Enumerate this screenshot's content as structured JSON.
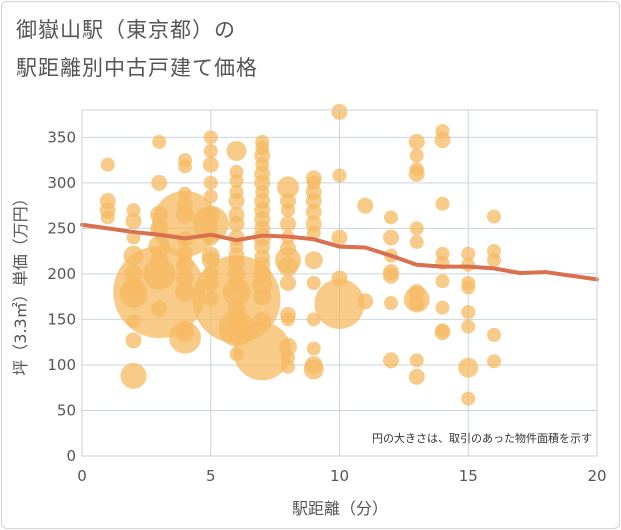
{
  "title_line1": "御嶽山駅（東京都）の",
  "title_line2": "駅距離別中古戸建て価格",
  "chart_data": {
    "type": "scatter",
    "title": "御嶽山駅（東京都）の 駅距離別中古戸建て価格",
    "xlabel": "駅距離（分）",
    "ylabel": "坪（3.3㎡）単価（万円）",
    "xlim": [
      0,
      20
    ],
    "ylim": [
      0,
      380
    ],
    "xticks": [
      0,
      5,
      10,
      15,
      20
    ],
    "yticks": [
      0,
      50,
      100,
      150,
      200,
      250,
      300,
      350
    ],
    "grid": true,
    "annotation": "円の大きさは、取引のあった物件面積を示す",
    "bubble_color": "#f5b961",
    "line_color": "#d9704e",
    "bubbles": [
      {
        "x": 1,
        "y": 320,
        "s": 7
      },
      {
        "x": 1,
        "y": 280,
        "s": 8
      },
      {
        "x": 1,
        "y": 270,
        "s": 8
      },
      {
        "x": 1,
        "y": 262,
        "s": 7
      },
      {
        "x": 2,
        "y": 270,
        "s": 7
      },
      {
        "x": 2,
        "y": 258,
        "s": 8
      },
      {
        "x": 2,
        "y": 240,
        "s": 7
      },
      {
        "x": 2,
        "y": 220,
        "s": 10
      },
      {
        "x": 2,
        "y": 200,
        "s": 9
      },
      {
        "x": 2,
        "y": 183,
        "s": 12
      },
      {
        "x": 2,
        "y": 178,
        "s": 14
      },
      {
        "x": 2,
        "y": 148,
        "s": 7
      },
      {
        "x": 2,
        "y": 127,
        "s": 8
      },
      {
        "x": 2,
        "y": 88,
        "s": 13
      },
      {
        "x": 3,
        "y": 345,
        "s": 7
      },
      {
        "x": 3,
        "y": 300,
        "s": 8
      },
      {
        "x": 3,
        "y": 265,
        "s": 9
      },
      {
        "x": 3,
        "y": 250,
        "s": 9
      },
      {
        "x": 3,
        "y": 230,
        "s": 11
      },
      {
        "x": 3,
        "y": 215,
        "s": 9
      },
      {
        "x": 3,
        "y": 200,
        "s": 16
      },
      {
        "x": 3,
        "y": 180,
        "s": 46
      },
      {
        "x": 3,
        "y": 162,
        "s": 8
      },
      {
        "x": 4,
        "y": 325,
        "s": 7
      },
      {
        "x": 4,
        "y": 318,
        "s": 7
      },
      {
        "x": 4,
        "y": 288,
        "s": 7
      },
      {
        "x": 4,
        "y": 275,
        "s": 8
      },
      {
        "x": 4,
        "y": 265,
        "s": 9
      },
      {
        "x": 4,
        "y": 255,
        "s": 33
      },
      {
        "x": 4,
        "y": 238,
        "s": 8
      },
      {
        "x": 4,
        "y": 222,
        "s": 8
      },
      {
        "x": 4,
        "y": 210,
        "s": 9
      },
      {
        "x": 4,
        "y": 195,
        "s": 9
      },
      {
        "x": 4,
        "y": 180,
        "s": 10
      },
      {
        "x": 4,
        "y": 140,
        "s": 8
      },
      {
        "x": 4,
        "y": 135,
        "s": 9
      },
      {
        "x": 4,
        "y": 130,
        "s": 16
      },
      {
        "x": 5,
        "y": 350,
        "s": 7
      },
      {
        "x": 5,
        "y": 335,
        "s": 7
      },
      {
        "x": 5,
        "y": 320,
        "s": 8
      },
      {
        "x": 5,
        "y": 300,
        "s": 7
      },
      {
        "x": 5,
        "y": 285,
        "s": 7
      },
      {
        "x": 5,
        "y": 265,
        "s": 9
      },
      {
        "x": 5,
        "y": 255,
        "s": 18
      },
      {
        "x": 5,
        "y": 240,
        "s": 8
      },
      {
        "x": 5,
        "y": 220,
        "s": 9
      },
      {
        "x": 5,
        "y": 215,
        "s": 9
      },
      {
        "x": 5,
        "y": 200,
        "s": 8
      },
      {
        "x": 5,
        "y": 190,
        "s": 8
      },
      {
        "x": 5,
        "y": 173,
        "s": 8
      },
      {
        "x": 6,
        "y": 335,
        "s": 10
      },
      {
        "x": 6,
        "y": 312,
        "s": 7
      },
      {
        "x": 6,
        "y": 302,
        "s": 7
      },
      {
        "x": 6,
        "y": 290,
        "s": 7
      },
      {
        "x": 6,
        "y": 280,
        "s": 8
      },
      {
        "x": 6,
        "y": 265,
        "s": 8
      },
      {
        "x": 6,
        "y": 255,
        "s": 8
      },
      {
        "x": 6,
        "y": 240,
        "s": 8
      },
      {
        "x": 6,
        "y": 230,
        "s": 7
      },
      {
        "x": 6,
        "y": 220,
        "s": 8
      },
      {
        "x": 6,
        "y": 212,
        "s": 8
      },
      {
        "x": 6,
        "y": 200,
        "s": 9
      },
      {
        "x": 6,
        "y": 190,
        "s": 8
      },
      {
        "x": 6,
        "y": 180,
        "s": 14
      },
      {
        "x": 6,
        "y": 172,
        "s": 44
      },
      {
        "x": 6,
        "y": 160,
        "s": 9
      },
      {
        "x": 6,
        "y": 150,
        "s": 9
      },
      {
        "x": 6,
        "y": 140,
        "s": 18
      },
      {
        "x": 6,
        "y": 135,
        "s": 10
      },
      {
        "x": 6,
        "y": 112,
        "s": 7
      },
      {
        "x": 7,
        "y": 345,
        "s": 7
      },
      {
        "x": 7,
        "y": 338,
        "s": 7
      },
      {
        "x": 7,
        "y": 330,
        "s": 8
      },
      {
        "x": 7,
        "y": 320,
        "s": 7
      },
      {
        "x": 7,
        "y": 310,
        "s": 8
      },
      {
        "x": 7,
        "y": 300,
        "s": 8
      },
      {
        "x": 7,
        "y": 290,
        "s": 7
      },
      {
        "x": 7,
        "y": 280,
        "s": 8
      },
      {
        "x": 7,
        "y": 270,
        "s": 8
      },
      {
        "x": 7,
        "y": 260,
        "s": 8
      },
      {
        "x": 7,
        "y": 250,
        "s": 8
      },
      {
        "x": 7,
        "y": 240,
        "s": 9
      },
      {
        "x": 7,
        "y": 230,
        "s": 8
      },
      {
        "x": 7,
        "y": 218,
        "s": 8
      },
      {
        "x": 7,
        "y": 210,
        "s": 8
      },
      {
        "x": 7,
        "y": 200,
        "s": 9
      },
      {
        "x": 7,
        "y": 188,
        "s": 10
      },
      {
        "x": 7,
        "y": 175,
        "s": 9
      },
      {
        "x": 7,
        "y": 148,
        "s": 9
      },
      {
        "x": 7,
        "y": 115,
        "s": 29
      },
      {
        "x": 8,
        "y": 295,
        "s": 11
      },
      {
        "x": 8,
        "y": 280,
        "s": 8
      },
      {
        "x": 8,
        "y": 270,
        "s": 7
      },
      {
        "x": 8,
        "y": 255,
        "s": 8
      },
      {
        "x": 8,
        "y": 240,
        "s": 7
      },
      {
        "x": 8,
        "y": 228,
        "s": 8
      },
      {
        "x": 8,
        "y": 215,
        "s": 13
      },
      {
        "x": 8,
        "y": 208,
        "s": 10
      },
      {
        "x": 8,
        "y": 190,
        "s": 8
      },
      {
        "x": 8,
        "y": 155,
        "s": 8
      },
      {
        "x": 8,
        "y": 150,
        "s": 7
      },
      {
        "x": 8,
        "y": 120,
        "s": 9
      },
      {
        "x": 8,
        "y": 108,
        "s": 7
      },
      {
        "x": 8,
        "y": 98,
        "s": 7
      },
      {
        "x": 9,
        "y": 305,
        "s": 8
      },
      {
        "x": 9,
        "y": 300,
        "s": 7
      },
      {
        "x": 9,
        "y": 290,
        "s": 8
      },
      {
        "x": 9,
        "y": 280,
        "s": 8
      },
      {
        "x": 9,
        "y": 268,
        "s": 8
      },
      {
        "x": 9,
        "y": 255,
        "s": 8
      },
      {
        "x": 9,
        "y": 245,
        "s": 7
      },
      {
        "x": 9,
        "y": 215,
        "s": 9
      },
      {
        "x": 9,
        "y": 190,
        "s": 7
      },
      {
        "x": 9,
        "y": 150,
        "s": 7
      },
      {
        "x": 9,
        "y": 118,
        "s": 7
      },
      {
        "x": 9,
        "y": 100,
        "s": 9
      },
      {
        "x": 9,
        "y": 95,
        "s": 10
      },
      {
        "x": 10,
        "y": 378,
        "s": 8
      },
      {
        "x": 10,
        "y": 308,
        "s": 7
      },
      {
        "x": 10,
        "y": 240,
        "s": 8
      },
      {
        "x": 10,
        "y": 195,
        "s": 8
      },
      {
        "x": 10,
        "y": 167,
        "s": 25
      },
      {
        "x": 11,
        "y": 275,
        "s": 8
      },
      {
        "x": 11,
        "y": 170,
        "s": 8
      },
      {
        "x": 12,
        "y": 262,
        "s": 7
      },
      {
        "x": 12,
        "y": 240,
        "s": 8
      },
      {
        "x": 12,
        "y": 220,
        "s": 7
      },
      {
        "x": 12,
        "y": 202,
        "s": 8
      },
      {
        "x": 12,
        "y": 198,
        "s": 8
      },
      {
        "x": 12,
        "y": 168,
        "s": 7
      },
      {
        "x": 12,
        "y": 105,
        "s": 8
      },
      {
        "x": 13,
        "y": 345,
        "s": 8
      },
      {
        "x": 13,
        "y": 330,
        "s": 7
      },
      {
        "x": 13,
        "y": 315,
        "s": 7
      },
      {
        "x": 13,
        "y": 310,
        "s": 8
      },
      {
        "x": 13,
        "y": 250,
        "s": 7
      },
      {
        "x": 13,
        "y": 235,
        "s": 7
      },
      {
        "x": 13,
        "y": 180,
        "s": 8
      },
      {
        "x": 13,
        "y": 172,
        "s": 13
      },
      {
        "x": 13,
        "y": 168,
        "s": 8
      },
      {
        "x": 13,
        "y": 105,
        "s": 7
      },
      {
        "x": 13,
        "y": 87,
        "s": 8
      },
      {
        "x": 14,
        "y": 357,
        "s": 7
      },
      {
        "x": 14,
        "y": 347,
        "s": 8
      },
      {
        "x": 14,
        "y": 277,
        "s": 7
      },
      {
        "x": 14,
        "y": 222,
        "s": 7
      },
      {
        "x": 14,
        "y": 212,
        "s": 7
      },
      {
        "x": 14,
        "y": 192,
        "s": 7
      },
      {
        "x": 14,
        "y": 163,
        "s": 7
      },
      {
        "x": 14,
        "y": 138,
        "s": 7
      },
      {
        "x": 14,
        "y": 136,
        "s": 8
      },
      {
        "x": 15,
        "y": 222,
        "s": 7
      },
      {
        "x": 15,
        "y": 210,
        "s": 7
      },
      {
        "x": 15,
        "y": 190,
        "s": 7
      },
      {
        "x": 15,
        "y": 185,
        "s": 7
      },
      {
        "x": 15,
        "y": 158,
        "s": 7
      },
      {
        "x": 15,
        "y": 142,
        "s": 7
      },
      {
        "x": 15,
        "y": 97,
        "s": 10
      },
      {
        "x": 15,
        "y": 63,
        "s": 7
      },
      {
        "x": 16,
        "y": 263,
        "s": 7
      },
      {
        "x": 16,
        "y": 225,
        "s": 7
      },
      {
        "x": 16,
        "y": 215,
        "s": 7
      },
      {
        "x": 16,
        "y": 133,
        "s": 7
      },
      {
        "x": 16,
        "y": 104,
        "s": 7
      }
    ],
    "trend_line": {
      "x": [
        0,
        1,
        2,
        3,
        4,
        5,
        6,
        7,
        8,
        9,
        10,
        11,
        12,
        13,
        14,
        15,
        16,
        17,
        18,
        19,
        20
      ],
      "y": [
        254,
        250,
        246,
        243,
        239,
        243,
        237,
        242,
        241,
        238,
        230,
        229,
        220,
        210,
        208,
        208,
        206,
        201,
        202,
        198,
        194
      ]
    }
  }
}
